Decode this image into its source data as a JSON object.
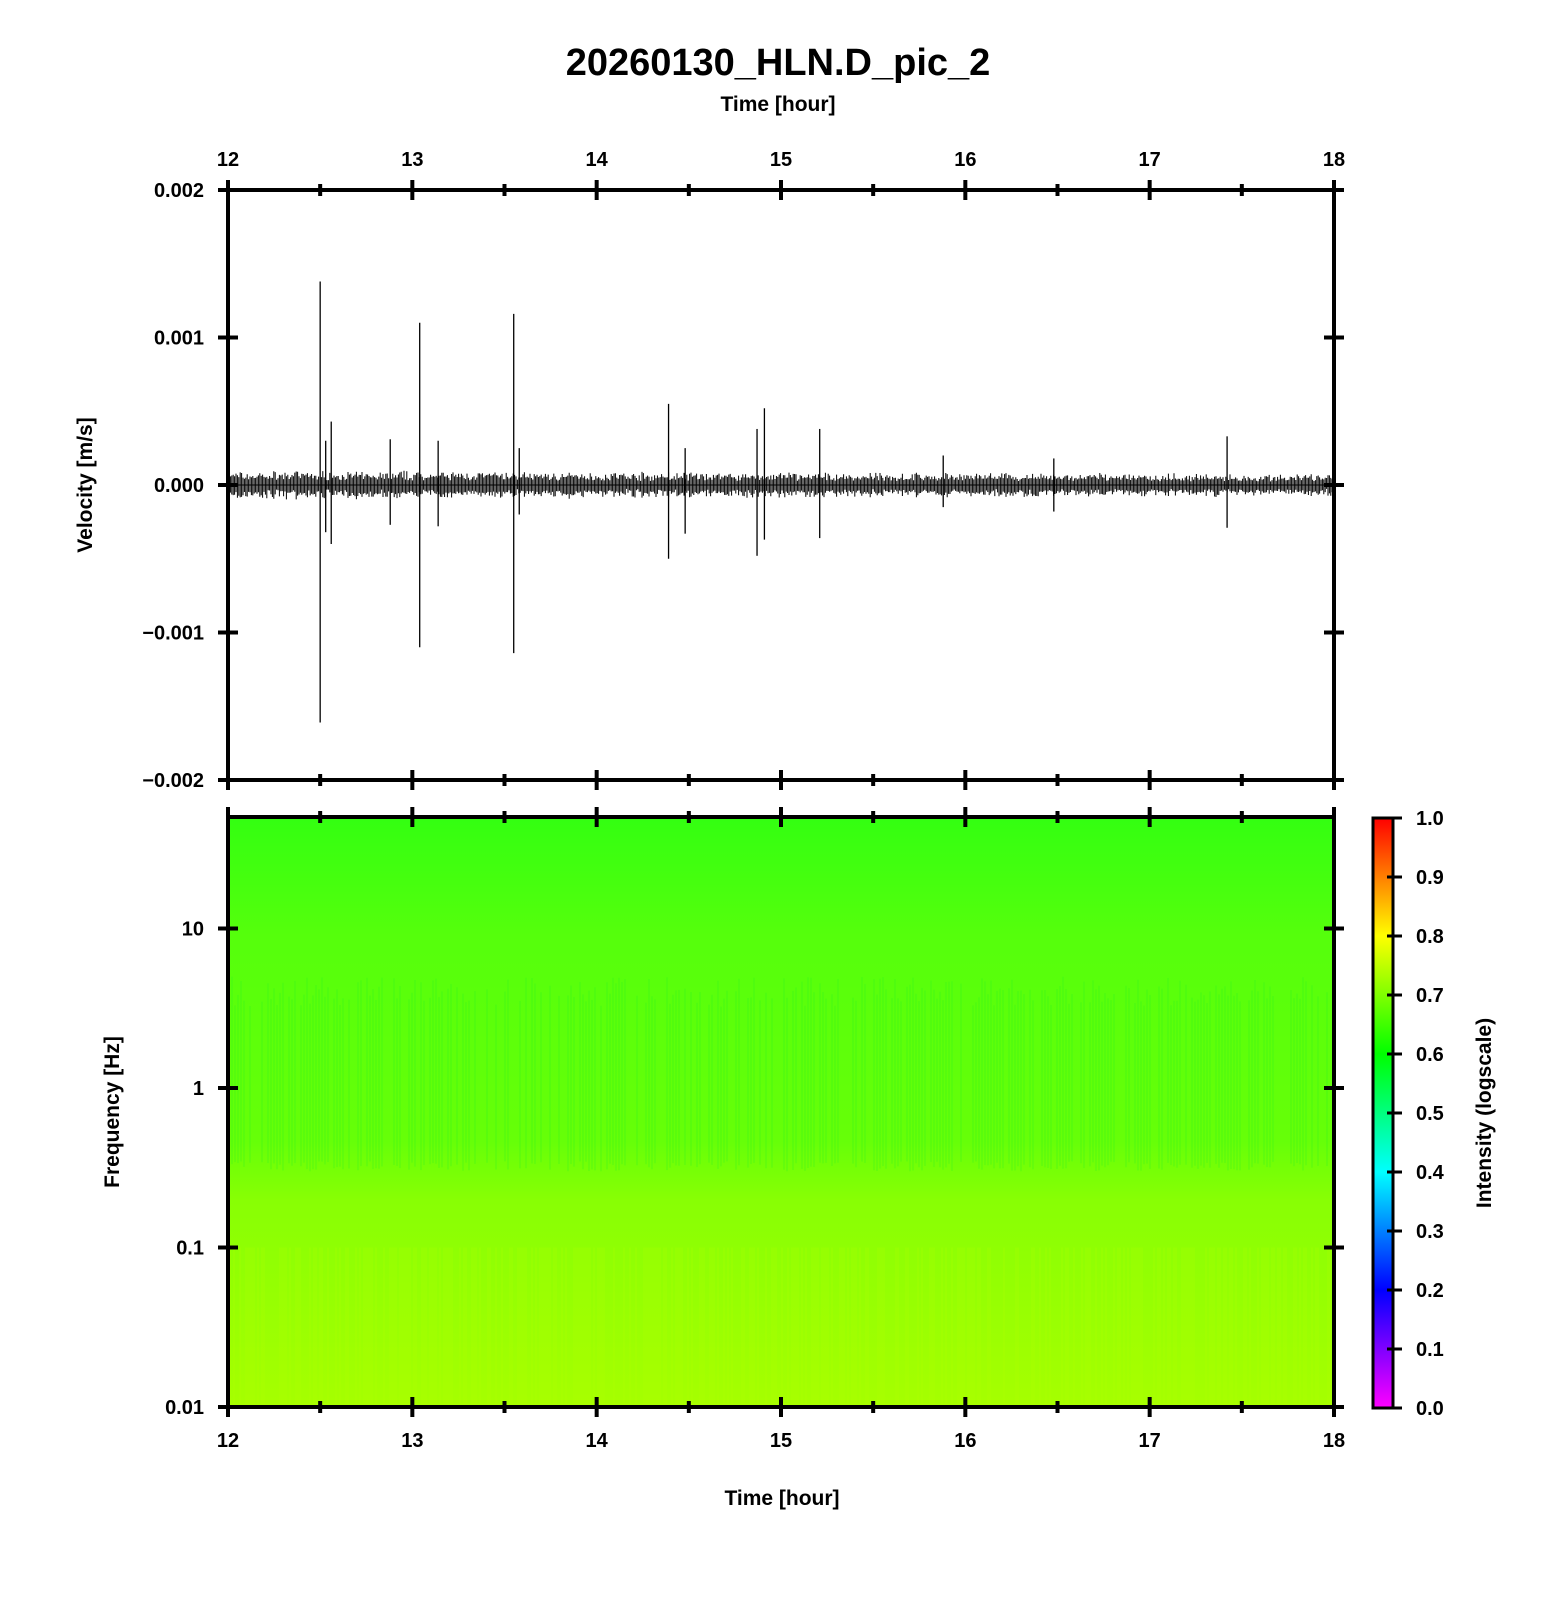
{
  "title": "20260130_HLN.D_pic_2",
  "colors": {
    "frame": "#000000",
    "trace": "#000000",
    "spectrogram_top": "#33ff11",
    "spectrogram_mid": "#66ff0c",
    "spectrogram_bottom": "#99ff00"
  },
  "chart_data": [
    {
      "type": "line",
      "name": "waveform",
      "xlabel": "Time [hour]",
      "ylabel": "Velocity [m/s]",
      "xlim": [
        12,
        18
      ],
      "ylim": [
        -0.002,
        0.002
      ],
      "x_ticks": [
        "12",
        "13",
        "14",
        "15",
        "16",
        "17",
        "18"
      ],
      "y_ticks": [
        "−0.002",
        "−0.001",
        "0.000",
        "0.001",
        "0.002"
      ],
      "noise_amplitude": 0.0001,
      "spikes": [
        {
          "t": 12.5,
          "max": 0.00138,
          "min": -0.00161
        },
        {
          "t": 12.53,
          "max": 0.0003,
          "min": -0.00032
        },
        {
          "t": 12.56,
          "max": 0.00043,
          "min": -0.0004
        },
        {
          "t": 12.88,
          "max": 0.00031,
          "min": -0.00027
        },
        {
          "t": 13.04,
          "max": 0.0011,
          "min": -0.0011
        },
        {
          "t": 13.14,
          "max": 0.0003,
          "min": -0.00028
        },
        {
          "t": 13.55,
          "max": 0.00116,
          "min": -0.00114
        },
        {
          "t": 13.58,
          "max": 0.00025,
          "min": -0.0002
        },
        {
          "t": 14.39,
          "max": 0.00055,
          "min": -0.0005
        },
        {
          "t": 14.48,
          "max": 0.00025,
          "min": -0.00033
        },
        {
          "t": 14.87,
          "max": 0.00038,
          "min": -0.00048
        },
        {
          "t": 14.91,
          "max": 0.00052,
          "min": -0.00037
        },
        {
          "t": 15.21,
          "max": 0.00038,
          "min": -0.00036
        },
        {
          "t": 15.88,
          "max": 0.0002,
          "min": -0.00015
        },
        {
          "t": 16.48,
          "max": 0.00018,
          "min": -0.00018
        },
        {
          "t": 17.42,
          "max": 0.00033,
          "min": -0.00029
        }
      ]
    },
    {
      "type": "heatmap",
      "name": "spectrogram",
      "xlabel": "Time [hour]",
      "ylabel": "Frequency [Hz]",
      "xlim": [
        12,
        18
      ],
      "ylim": [
        0.01,
        50
      ],
      "yscale": "log",
      "x_ticks": [
        "12",
        "13",
        "14",
        "15",
        "16",
        "17",
        "18"
      ],
      "y_ticks": [
        "0.01",
        "0.1",
        "1",
        "10"
      ],
      "colorbar": {
        "label": "Intensity (logscale)",
        "range": [
          0,
          1
        ],
        "ticks": [
          "0.0",
          "0.1",
          "0.2",
          "0.3",
          "0.4",
          "0.5",
          "0.6",
          "0.7",
          "0.8",
          "0.9",
          "1.0"
        ],
        "colormap": [
          "#ff00ff",
          "#0000ff",
          "#00ffff",
          "#00ff00",
          "#ffff00",
          "#ff0000"
        ]
      },
      "intensity_profile": [
        {
          "freq": 50,
          "value": 0.62
        },
        {
          "freq": 10,
          "value": 0.64
        },
        {
          "freq": 3,
          "value": 0.62
        },
        {
          "freq": 1,
          "value": 0.6
        },
        {
          "freq": 0.35,
          "value": 0.62
        },
        {
          "freq": 0.1,
          "value": 0.68
        },
        {
          "freq": 0.01,
          "value": 0.72
        }
      ]
    }
  ]
}
